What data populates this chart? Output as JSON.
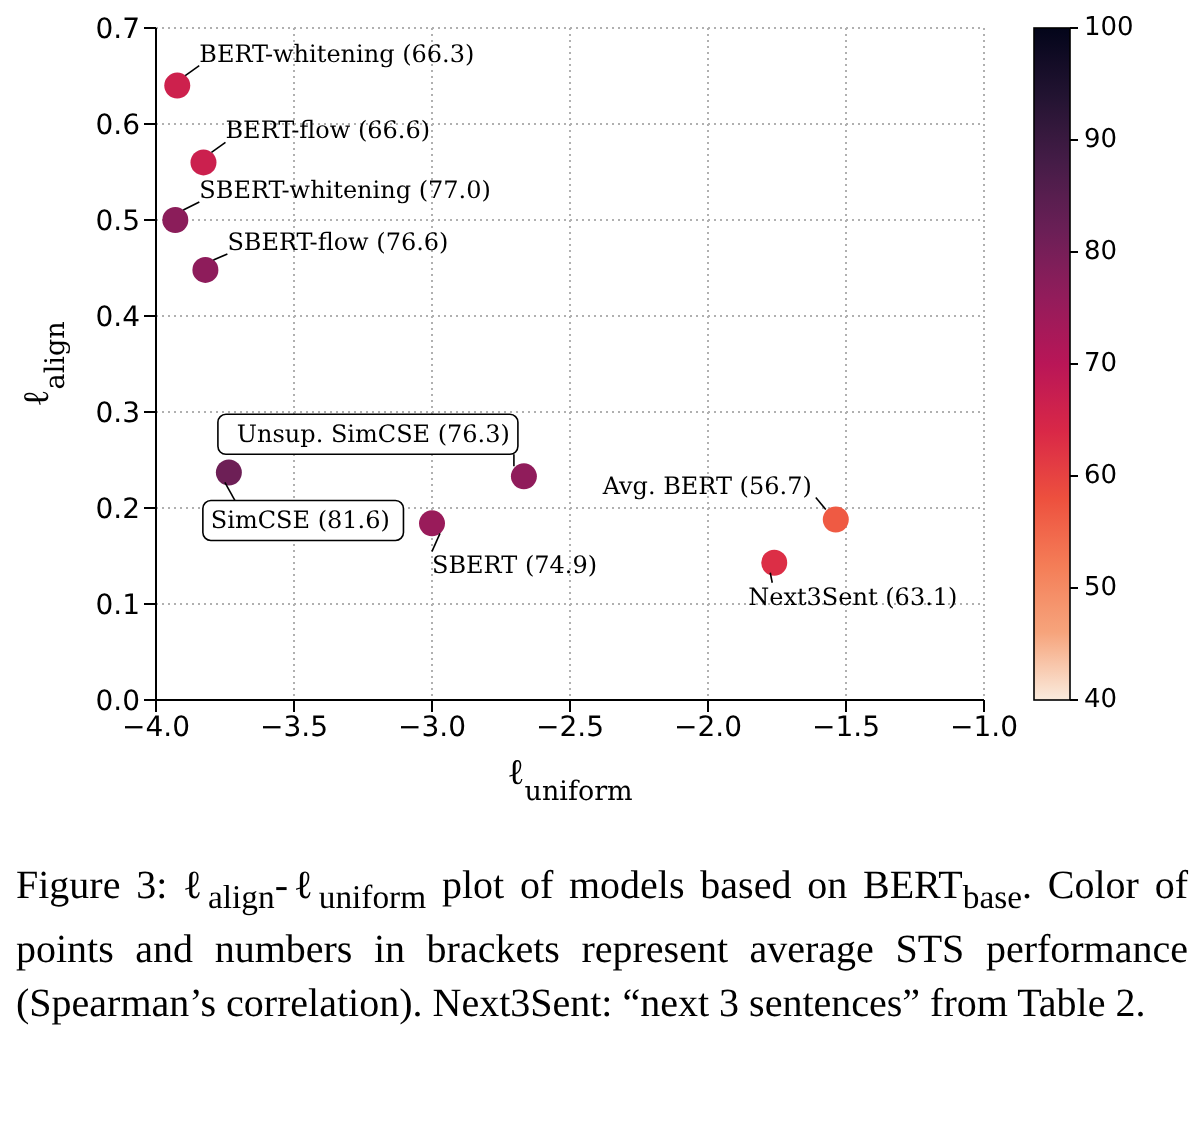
{
  "chart_data": {
    "type": "scatter",
    "x": [
      -3.923,
      -3.828,
      -3.93,
      -3.821,
      -3.736,
      -2.667,
      -3.0,
      -1.537,
      -1.76
    ],
    "values": [
      0.64,
      0.56,
      0.5,
      0.448,
      0.237,
      0.233,
      0.184,
      0.188,
      0.143
    ],
    "cvalues": [
      66.3,
      66.6,
      77.0,
      76.6,
      81.6,
      76.3,
      74.9,
      56.7,
      63.1
    ],
    "clim": [
      40,
      100
    ],
    "cticks": [
      40,
      50,
      60,
      70,
      80,
      90,
      100
    ],
    "marker": "circle",
    "xlim": [
      -4,
      -1
    ],
    "xticks": [
      {
        "value": -4,
        "label": "−4.0"
      },
      {
        "value": -3.5,
        "label": "−3.5"
      },
      {
        "value": -3,
        "label": "−3.0"
      },
      {
        "value": -2.5,
        "label": "−2.5"
      },
      {
        "value": -2,
        "label": "−2.0"
      },
      {
        "value": -1.5,
        "label": "−1.5"
      },
      {
        "value": -1,
        "label": "−1.0"
      }
    ],
    "ylim": [
      0,
      0.7
    ],
    "yticks": [
      {
        "value": 0,
        "label": "0.0"
      },
      {
        "value": 0.1,
        "label": "0.1"
      },
      {
        "value": 0.2,
        "label": "0.2"
      },
      {
        "value": 0.3,
        "label": "0.3"
      },
      {
        "value": 0.4,
        "label": "0.4"
      },
      {
        "value": 0.5,
        "label": "0.5"
      },
      {
        "value": 0.6,
        "label": "0.6"
      },
      {
        "value": 0.7,
        "label": "0.7"
      }
    ],
    "xlabel": "ℓ$_{uniform}$",
    "ylabel": "ℓ$_{align}$",
    "grid": true,
    "annotations": [
      {
        "text": "BERT-whitening (66.3)",
        "x": -3.923,
        "y": 0.64
      },
      {
        "text": "BERT-flow (66.6)",
        "x": -3.828,
        "y": 0.56
      },
      {
        "text": "SBERT-whitening (77.0)",
        "x": -3.93,
        "y": 0.5
      },
      {
        "text": "SBERT-flow (76.6)",
        "x": -3.821,
        "y": 0.448
      },
      {
        "text": "SimCSE (81.6)",
        "x": -3.736,
        "y": 0.237
      },
      {
        "text": "Unsup. SimCSE (76.3)",
        "x": -2.667,
        "y": 0.233
      },
      {
        "text": "SBERT (74.9)",
        "x": -3.0,
        "y": 0.184
      },
      {
        "text": "Avg. BERT (56.7)",
        "x": -1.537,
        "y": 0.188
      },
      {
        "text": "Next3Sent (63.1)",
        "x": -1.76,
        "y": 0.143
      },
      "Figure 3: ℓ$_{align}$-ℓ$_{uniform}$ plot of models based on BERT$_{base}$. Color of points and numbers in brackets represent average STS performance (Spearman’s correlation). Next3Sent: “next 3 sentences” from Table 2."
    ]
  }
}
